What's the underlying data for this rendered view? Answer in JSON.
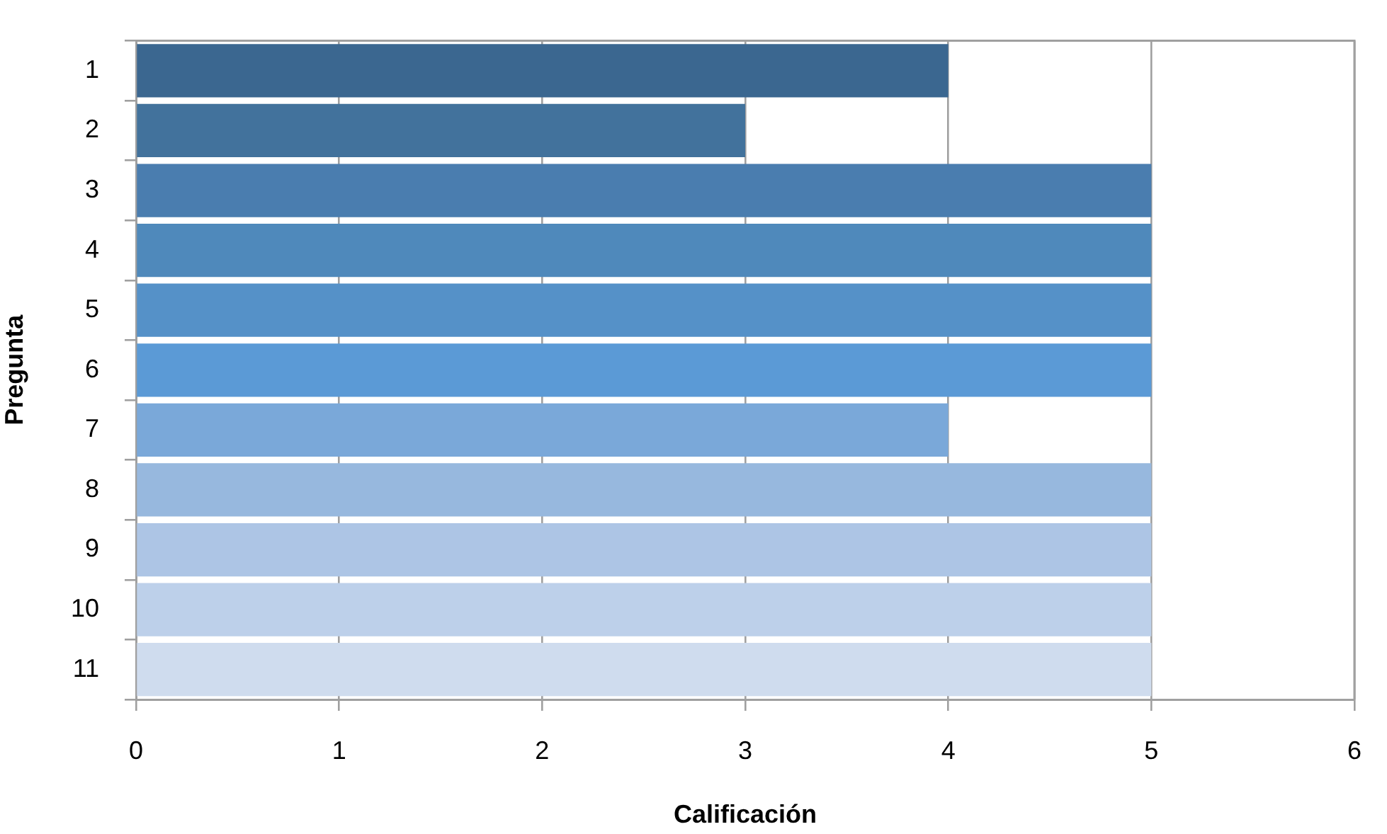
{
  "chart_data": {
    "type": "bar",
    "orientation": "horizontal",
    "xlabel": "Calificación",
    "ylabel": "Pregunta",
    "categories": [
      "1",
      "2",
      "3",
      "4",
      "5",
      "6",
      "7",
      "8",
      "9",
      "10",
      "11"
    ],
    "values": [
      4,
      3,
      5,
      5,
      5,
      5,
      4,
      5,
      5,
      5,
      5
    ],
    "colors": [
      "#3b6790",
      "#42729c",
      "#4a7daf",
      "#4f89bb",
      "#5591c8",
      "#5b9ad6",
      "#7aa8d9",
      "#97b8de",
      "#adc5e5",
      "#bdd0ea",
      "#cfdcee"
    ],
    "xlim": [
      0,
      6
    ],
    "xticks": [
      0,
      1,
      2,
      3,
      4,
      5,
      6
    ],
    "grid": "x"
  }
}
